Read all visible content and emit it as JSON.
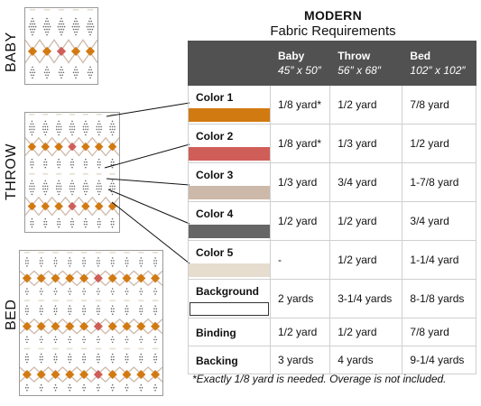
{
  "title": "MODERN",
  "subtitle": "Fabric Requirements",
  "side_labels": {
    "baby": "BABY",
    "throw": "THROW",
    "bed": "BED"
  },
  "columns": [
    {
      "name": "Baby",
      "size": "45″ x 50″"
    },
    {
      "name": "Throw",
      "size": "56″ x 68″"
    },
    {
      "name": "Bed",
      "size": "102″ x 102″"
    }
  ],
  "rows": [
    {
      "label": "Color 1",
      "swatch": "#D27A12",
      "baby": "1/8 yard*",
      "throw": "1/2 yard",
      "bed": "7/8 yard"
    },
    {
      "label": "Color 2",
      "swatch": "#D05E58",
      "baby": "1/8 yard*",
      "throw": "1/3 yard",
      "bed": "1/2 yard"
    },
    {
      "label": "Color 3",
      "swatch": "#CDB9AA",
      "baby": "1/3 yard",
      "throw": "3/4 yard",
      "bed": "1-7/8 yard"
    },
    {
      "label": "Color 4",
      "swatch": "#666666",
      "baby": "1/2 yard",
      "throw": "1/2 yard",
      "bed": "3/4 yard"
    },
    {
      "label": "Color 5",
      "swatch": "#E6DDCF",
      "baby": "-",
      "throw": "1/2 yard",
      "bed": "1-1/4 yard"
    },
    {
      "label": "Background",
      "swatch": "#FFFFFF",
      "baby": "2 yards",
      "throw": "3-1/4 yards",
      "bed": "8-1/8 yards"
    },
    {
      "label": "Binding",
      "baby": "1/2 yard",
      "throw": "1/2 yard",
      "bed": "7/8 yard"
    },
    {
      "label": "Backing",
      "baby": "3 yards",
      "throw": "4 yards",
      "bed": "9-1/4 yards"
    }
  ],
  "footnote": "*Exactly 1/8 yard is needed. Overage is not included.",
  "palette": {
    "header": "#515151",
    "orange": "#D27A12",
    "coral": "#D05E58",
    "tan": "#CDB9AA",
    "charcoal": "#666666",
    "cream": "#E6DDCF"
  }
}
